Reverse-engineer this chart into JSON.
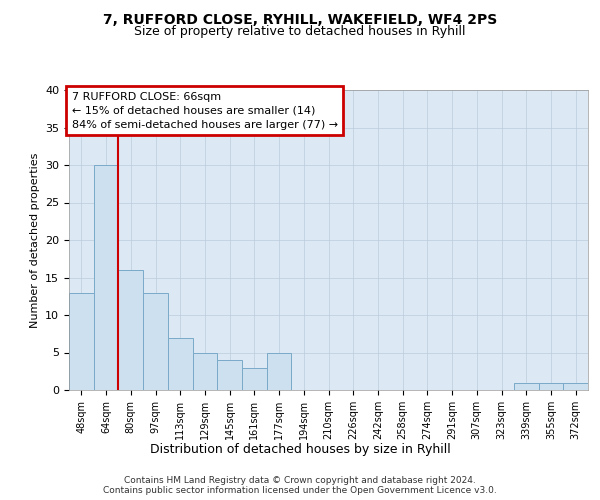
{
  "title1": "7, RUFFORD CLOSE, RYHILL, WAKEFIELD, WF4 2PS",
  "title2": "Size of property relative to detached houses in Ryhill",
  "xlabel": "Distribution of detached houses by size in Ryhill",
  "ylabel": "Number of detached properties",
  "categories": [
    "48sqm",
    "64sqm",
    "80sqm",
    "97sqm",
    "113sqm",
    "129sqm",
    "145sqm",
    "161sqm",
    "177sqm",
    "194sqm",
    "210sqm",
    "226sqm",
    "242sqm",
    "258sqm",
    "274sqm",
    "291sqm",
    "307sqm",
    "323sqm",
    "339sqm",
    "355sqm",
    "372sqm"
  ],
  "values": [
    13,
    30,
    16,
    13,
    7,
    5,
    4,
    3,
    5,
    0,
    0,
    0,
    0,
    0,
    0,
    0,
    0,
    0,
    1,
    1,
    1
  ],
  "bar_color": "#cce0f0",
  "bar_edge_color": "#7aaac8",
  "grid_color": "#bbccdd",
  "background_color": "#dce8f4",
  "red_line_x": 1.5,
  "annotation_title": "7 RUFFORD CLOSE: 66sqm",
  "annotation_line1": "← 15% of detached houses are smaller (14)",
  "annotation_line2": "84% of semi-detached houses are larger (77) →",
  "annotation_box_color": "#ffffff",
  "annotation_border_color": "#cc0000",
  "footer1": "Contains HM Land Registry data © Crown copyright and database right 2024.",
  "footer2": "Contains public sector information licensed under the Open Government Licence v3.0.",
  "ylim": [
    0,
    40
  ],
  "yticks": [
    0,
    5,
    10,
    15,
    20,
    25,
    30,
    35,
    40
  ],
  "fig_width": 6.0,
  "fig_height": 5.0,
  "fig_dpi": 100
}
